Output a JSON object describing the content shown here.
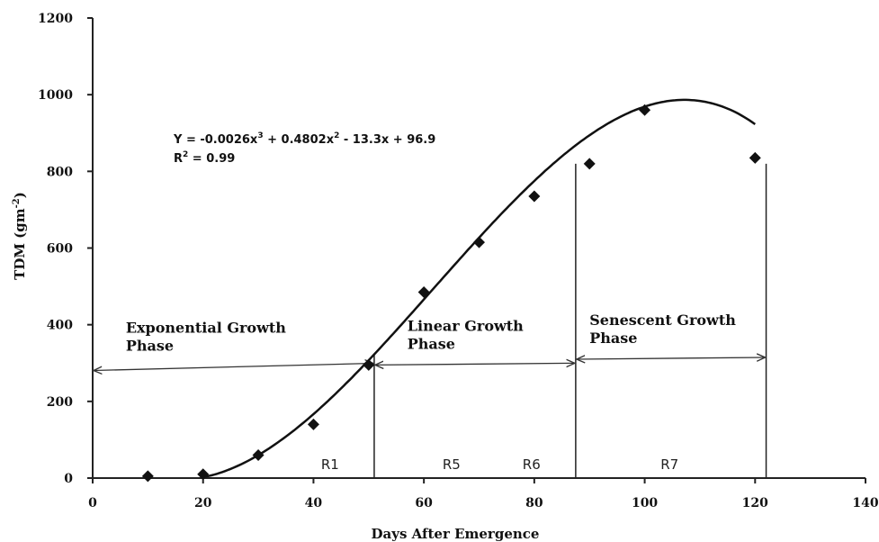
{
  "chart_data": {
    "type": "scatter",
    "xlabel": "Days After Emergence",
    "ylabel": "TDM (gm",
    "ylabel_sup": "-2",
    "ylabel_close": ")",
    "xlim": [
      0,
      140
    ],
    "ylim": [
      0,
      1200
    ],
    "xticks": [
      "0",
      "20",
      "40",
      "60",
      "80",
      "100",
      "120",
      "140"
    ],
    "yticks": [
      "0",
      "200",
      "400",
      "600",
      "800",
      "1000",
      "1200"
    ],
    "grid": false,
    "points": [
      {
        "x": 10,
        "y": 5
      },
      {
        "x": 20,
        "y": 10
      },
      {
        "x": 30,
        "y": 60
      },
      {
        "x": 40,
        "y": 140
      },
      {
        "x": 50,
        "y": 295
      },
      {
        "x": 60,
        "y": 485
      },
      {
        "x": 70,
        "y": 615
      },
      {
        "x": 80,
        "y": 735
      },
      {
        "x": 90,
        "y": 820
      },
      {
        "x": 100,
        "y": 960
      },
      {
        "x": 120,
        "y": 835
      }
    ],
    "trendline": {
      "type": "polynomial",
      "order": 3,
      "equation_parts": [
        "Y = -0.0026x",
        "3",
        " + 0.4802x",
        "2",
        " - 13.3x + 96.9"
      ],
      "r2_prefix": "R",
      "r2_sup": "2",
      "r2_value": " = 0.99",
      "coefficients": [
        -0.0026,
        0.4802,
        -13.3,
        96.9
      ]
    },
    "stage_lines": [
      51,
      87.5,
      122
    ],
    "stages": [
      {
        "label": "R1",
        "x": 43
      },
      {
        "label": "R5",
        "x": 65
      },
      {
        "label": "R6",
        "x": 79.5
      },
      {
        "label": "R7",
        "x": 104.5
      }
    ],
    "phases": [
      {
        "line1": "Exponential Growth",
        "line2": "Phase",
        "x_start": 0,
        "x_end": 51,
        "y_arrow": 290,
        "label_x": 6
      },
      {
        "line1": "Linear Growth",
        "line2": "Phase",
        "x_start": 51,
        "x_end": 87.5,
        "y_arrow": 295,
        "label_x": 57
      },
      {
        "line1": "Senescent Growth",
        "line2": "Phase",
        "x_start": 87.5,
        "x_end": 122,
        "y_arrow": 310,
        "label_x": 90
      }
    ]
  }
}
